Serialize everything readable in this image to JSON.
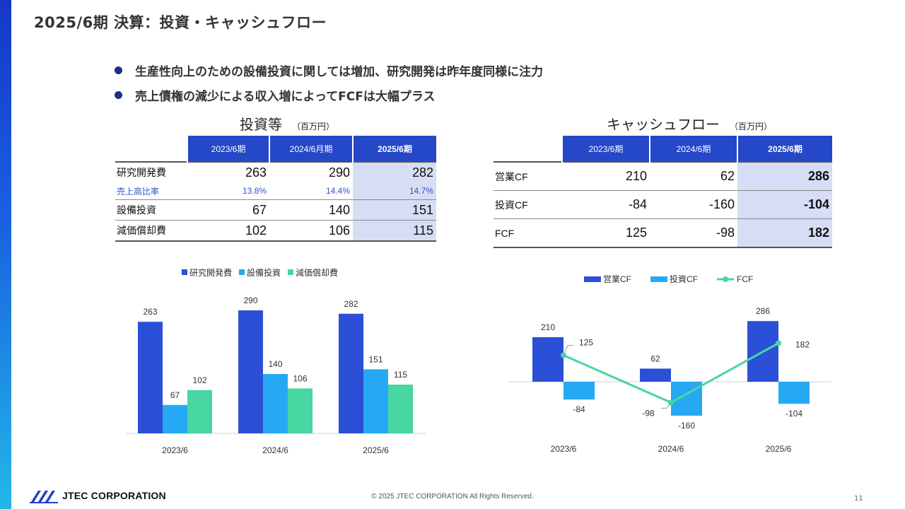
{
  "page": {
    "title": "2025/6期 決算：投資・キャッシュフロー",
    "bullets": [
      "生産性向上のための設備投資に関しては増加、研究開発は昨年度同様に注力",
      "売上債権の減少による収入増によってFCFは大幅プラス"
    ],
    "footer": "© 2025 JTEC CORPORATION All Rights Reserved.",
    "page_number": "11",
    "logo_text": "JTEC CORPORATION"
  },
  "investment_table": {
    "title": "投資等",
    "unit": "（百万円）",
    "headers": [
      "2023/6期",
      "2024/6月期",
      "2025/6期"
    ],
    "rows": [
      {
        "label": "研究開発費",
        "values": [
          "263",
          "290",
          "282"
        ]
      },
      {
        "label": "売上高比率",
        "values": [
          "13.8%",
          "14.4%",
          "14.7%"
        ]
      },
      {
        "label": "設備投資",
        "values": [
          "67",
          "140",
          "151"
        ]
      },
      {
        "label": "減価償却費",
        "values": [
          "102",
          "106",
          "115"
        ]
      }
    ]
  },
  "cashflow_table": {
    "title": "キャッシュフロー",
    "unit": "（百万円）",
    "headers": [
      "2023/6期",
      "2024/6期",
      "2025/6期"
    ],
    "rows": [
      {
        "label": "営業CF",
        "values": [
          "210",
          "62",
          "286"
        ]
      },
      {
        "label": "投資CF",
        "values": [
          "-84",
          "-160",
          "-104"
        ]
      },
      {
        "label": "FCF",
        "values": [
          "125",
          "-98",
          "182"
        ]
      }
    ]
  },
  "chart_data": [
    {
      "type": "bar",
      "categories": [
        "2023/6",
        "2024/6",
        "2025/6"
      ],
      "series": [
        {
          "name": "研究開発費",
          "values": [
            263,
            290,
            282
          ],
          "color": "#2b4fd6"
        },
        {
          "name": "設備投資",
          "values": [
            67,
            140,
            151
          ],
          "color": "#26a9f5"
        },
        {
          "name": "減価償却費",
          "values": [
            102,
            106,
            115
          ],
          "color": "#48d6a3"
        }
      ],
      "legend": "top",
      "grid": false,
      "ylim": [
        0,
        300
      ]
    },
    {
      "type": "bar",
      "categories": [
        "2023/6",
        "2024/6",
        "2025/6"
      ],
      "series": [
        {
          "name": "営業CF",
          "type": "bar",
          "values": [
            210,
            62,
            286
          ],
          "color": "#2b4fd6"
        },
        {
          "name": "投資CF",
          "type": "bar",
          "values": [
            -84,
            -160,
            -104
          ],
          "color": "#26a9f5"
        },
        {
          "name": "FCF",
          "type": "line",
          "values": [
            125,
            -98,
            182
          ],
          "color": "#48d6a3"
        }
      ],
      "legend": "top",
      "grid": false,
      "ylim": [
        -180,
        300
      ]
    }
  ]
}
